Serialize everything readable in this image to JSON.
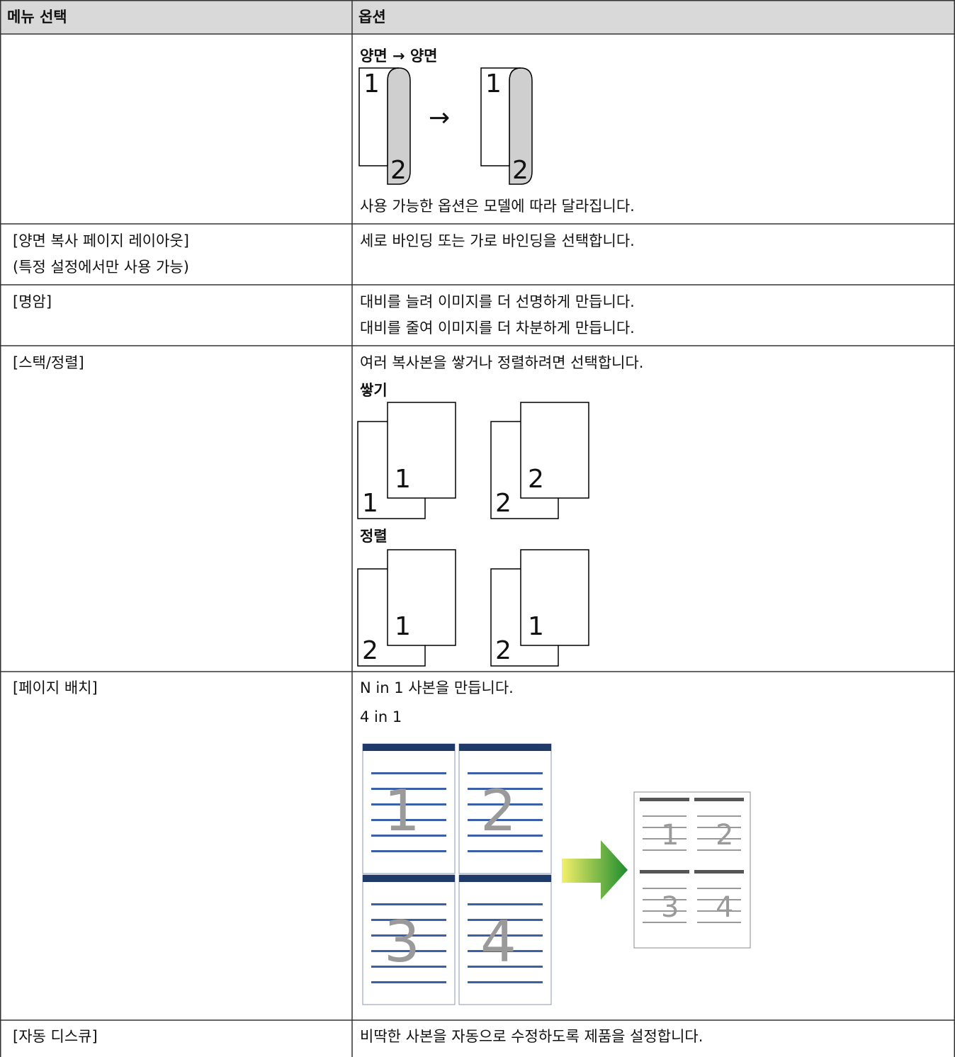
{
  "table": {
    "headers": [
      "메뉴 선택",
      "옵션"
    ],
    "rows": [
      {
        "options": {
          "heading": "양면 → 양면",
          "figure": {
            "pages": [
              "1",
              "2"
            ],
            "arrow": "→"
          },
          "note": "사용 가능한 옵션은 모델에 따라 달라집니다."
        }
      },
      {
        "menu": [
          "[양면 복사 페이지 레이아웃]",
          "(특정 설정에서만 사용 가능)"
        ],
        "options": {
          "text": [
            "세로 바인딩 또는 가로 바인딩을 선택합니다."
          ]
        }
      },
      {
        "menu": [
          "[명암]"
        ],
        "options": {
          "text": [
            "대비를 늘려 이미지를 더 선명하게 만듭니다.",
            "대비를 줄여 이미지를 더 차분하게 만듭니다."
          ]
        }
      },
      {
        "menu": [
          "[스택/정렬]"
        ],
        "options": {
          "text": [
            "여러 복사본을 쌓거나 정렬하려면 선택합니다."
          ],
          "figures": [
            {
              "heading": "쌓기",
              "sets": [
                [
                  "1",
                  "1"
                ],
                [
                  "2",
                  "2"
                ]
              ]
            },
            {
              "heading": "정렬",
              "sets": [
                [
                  "2",
                  "1"
                ],
                [
                  "2",
                  "1"
                ]
              ]
            }
          ]
        }
      },
      {
        "menu": [
          "[페이지 배치]"
        ],
        "options": {
          "text": [
            "N in 1 사본을 만듭니다."
          ],
          "heading": "4 in 1",
          "pages": [
            "1",
            "2",
            "3",
            "4"
          ]
        }
      },
      {
        "menu": [
          "[자동 디스큐]"
        ],
        "options": {
          "text": [
            "비딱한 사본을 자동으로 수정하도록 제품을 설정합니다."
          ]
        }
      }
    ]
  }
}
